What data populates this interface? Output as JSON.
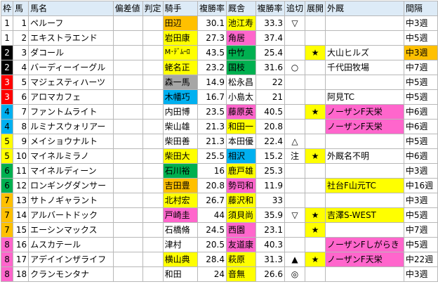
{
  "headers": [
    "枠",
    "馬",
    "馬名",
    "偏差値",
    "判定",
    "騎手",
    "複勝率",
    "厩舎",
    "複勝率",
    "追切",
    "展開",
    "外厩",
    "間隔"
  ],
  "rows": [
    {
      "waku": "1",
      "num": "1",
      "name": "ペルーフ",
      "dev": "",
      "judge": "",
      "jockey": "田辺",
      "j_rate": "30.1",
      "stable": "池江寿",
      "s_rate": "33.3",
      "oikiri": "▽",
      "tenkai": "",
      "gaikyu": "",
      "interval": "中3週"
    },
    {
      "waku": "1",
      "num": "2",
      "name": "エキストラエンド",
      "dev": "",
      "judge": "",
      "jockey": "岩田康",
      "j_rate": "27.3",
      "stable": "角居",
      "s_rate": "37.4",
      "oikiri": "",
      "tenkai": "",
      "gaikyu": "",
      "interval": "中5週"
    },
    {
      "waku": "2",
      "num": "3",
      "name": "ダコール",
      "dev": "",
      "judge": "",
      "jockey": "M･ﾃﾞﾑｰﾛ",
      "j_rate": "43.5",
      "stable": "中竹",
      "s_rate": "25.4",
      "oikiri": "",
      "tenkai": "★",
      "gaikyu": "大山ヒルズ",
      "interval": "中3週"
    },
    {
      "waku": "2",
      "num": "4",
      "name": "バーディーイーグル",
      "dev": "",
      "judge": "",
      "jockey": "蛯名正",
      "j_rate": "23.2",
      "stable": "国枝",
      "s_rate": "31.6",
      "oikiri": "○",
      "tenkai": "",
      "gaikyu": "千代田牧場",
      "interval": "中7週"
    },
    {
      "waku": "3",
      "num": "5",
      "name": "マジェスティハーツ",
      "dev": "",
      "judge": "",
      "jockey": "森一馬",
      "j_rate": "14.9",
      "stable": "松永昌",
      "s_rate": "22",
      "oikiri": "",
      "tenkai": "",
      "gaikyu": "",
      "interval": "中5週"
    },
    {
      "waku": "3",
      "num": "6",
      "name": "アロマカフェ",
      "dev": "",
      "judge": "",
      "jockey": "木幡巧",
      "j_rate": "16.7",
      "stable": "小島太",
      "s_rate": "21",
      "oikiri": "",
      "tenkai": "",
      "gaikyu": "阿見TC",
      "interval": "中5週"
    },
    {
      "waku": "4",
      "num": "7",
      "name": "ファントムライト",
      "dev": "",
      "judge": "",
      "jockey": "内田博",
      "j_rate": "23.5",
      "stable": "藤原英",
      "s_rate": "40.5",
      "oikiri": "",
      "tenkai": "★",
      "gaikyu": "ノーザンF天栄",
      "interval": "中6週"
    },
    {
      "waku": "4",
      "num": "8",
      "name": "ルミナスウォリアー",
      "dev": "",
      "judge": "",
      "jockey": "柴山雄",
      "j_rate": "21.3",
      "stable": "和田一",
      "s_rate": "20.8",
      "oikiri": "",
      "tenkai": "",
      "gaikyu": "ノーザンF天栄",
      "interval": "中6週"
    },
    {
      "waku": "5",
      "num": "9",
      "name": "メイショウナルト",
      "dev": "",
      "judge": "",
      "jockey": "柴田善",
      "j_rate": "21.3",
      "stable": "本田優",
      "s_rate": "22.4",
      "oikiri": "△",
      "tenkai": "",
      "gaikyu": "",
      "interval": "中5週"
    },
    {
      "waku": "5",
      "num": "10",
      "name": "マイネルミラノ",
      "dev": "",
      "judge": "",
      "jockey": "柴田大",
      "j_rate": "25.5",
      "stable": "相沢",
      "s_rate": "15.2",
      "oikiri": "注",
      "tenkai": "★",
      "gaikyu": "外厩名不明",
      "interval": "中6週"
    },
    {
      "waku": "6",
      "num": "11",
      "name": "マイネルディーン",
      "dev": "",
      "judge": "",
      "jockey": "石川裕",
      "j_rate": "16",
      "stable": "鹿戸雄",
      "s_rate": "25.3",
      "oikiri": "",
      "tenkai": "",
      "gaikyu": "",
      "interval": "中3週"
    },
    {
      "waku": "6",
      "num": "12",
      "name": "ロンギングダンサー",
      "dev": "",
      "judge": "",
      "jockey": "吉田豊",
      "j_rate": "20.8",
      "stable": "勢司和",
      "s_rate": "11.9",
      "oikiri": "",
      "tenkai": "",
      "gaikyu": "社台F山元TC",
      "interval": "中16週"
    },
    {
      "waku": "7",
      "num": "13",
      "name": "サトノギャラント",
      "dev": "",
      "judge": "",
      "jockey": "北村宏",
      "j_rate": "26.7",
      "stable": "藤沢和",
      "s_rate": "33",
      "oikiri": "",
      "tenkai": "",
      "gaikyu": "",
      "interval": "中3週"
    },
    {
      "waku": "7",
      "num": "14",
      "name": "アルバートドック",
      "dev": "",
      "judge": "",
      "jockey": "戸崎圭",
      "j_rate": "44",
      "stable": "須貝尚",
      "s_rate": "35.9",
      "oikiri": "▽",
      "tenkai": "★",
      "gaikyu": "吉澤S-WEST",
      "interval": "中5週"
    },
    {
      "waku": "7",
      "num": "15",
      "name": "エーシンマックス",
      "dev": "",
      "judge": "",
      "jockey": "石橋脩",
      "j_rate": "24.5",
      "stable": "西園",
      "s_rate": "23.1",
      "oikiri": "",
      "tenkai": "★",
      "gaikyu": "",
      "interval": "中7週"
    },
    {
      "waku": "8",
      "num": "16",
      "name": "ムスカテール",
      "dev": "",
      "judge": "",
      "jockey": "津村",
      "j_rate": "20.5",
      "stable": "友道康",
      "s_rate": "40.3",
      "oikiri": "",
      "tenkai": "",
      "gaikyu": "ノーザンFしがらき",
      "interval": "中5週"
    },
    {
      "waku": "8",
      "num": "17",
      "name": "アデイインザライフ",
      "dev": "",
      "judge": "",
      "jockey": "横山典",
      "j_rate": "28.4",
      "stable": "萩原",
      "s_rate": "31.3",
      "oikiri": "▲",
      "tenkai": "★",
      "gaikyu": "ノーザンF天栄",
      "interval": "中22週"
    },
    {
      "waku": "8",
      "num": "18",
      "name": "クランモンタナ",
      "dev": "",
      "judge": "",
      "jockey": "和田",
      "j_rate": "24",
      "stable": "音無",
      "s_rate": "26.6",
      "oikiri": "◎",
      "tenkai": "",
      "gaikyu": "",
      "interval": "中3週"
    }
  ],
  "colors": {
    "header_bg": "#ddebf7",
    "waku": {
      "1": "#ffffff",
      "2": "#000000",
      "3": "#ff0000",
      "4": "#00b0f0",
      "5": "#ffff00",
      "6": "#00b050",
      "7": "#ffc000",
      "8": "#ff66cc"
    },
    "waku_text": {
      "1": "#000000",
      "2": "#ffffff",
      "3": "#ffffff",
      "4": "#000000",
      "5": "#000000",
      "6": "#000000",
      "7": "#000000",
      "8": "#000000"
    },
    "orange": "#ffc000",
    "yellow": "#ffff00",
    "pink": "#ff66cc",
    "green": "#00b050",
    "gray": "#a6a6a6",
    "blue": "#00b0f0"
  },
  "highlights": {
    "jockey": {
      "0": "orange",
      "1": "yellow",
      "2": "yellow",
      "3": "yellow",
      "4": "gray",
      "5": "blue",
      "9": "yellow",
      "10": "green",
      "11": "orange",
      "12": "yellow",
      "13": "pink",
      "16": "yellow"
    },
    "stable": {
      "0": "yellow",
      "1": "pink",
      "2": "green",
      "3": "green",
      "6": "pink",
      "7": "yellow",
      "9": "blue",
      "10": "yellow",
      "11": "pink",
      "12": "yellow",
      "13": "yellow",
      "14": "pink",
      "15": "pink",
      "16": "yellow",
      "17": "yellow"
    },
    "tenkai": {
      "2": "yellow",
      "6": "yellow",
      "9": "yellow",
      "13": "yellow",
      "14": "yellow",
      "16": "yellow"
    },
    "gaikyu": {
      "6": "pink",
      "7": "pink",
      "11": "yellow",
      "13": "yellow",
      "15": "pink",
      "16": "pink"
    },
    "interval": {
      "2": "orange"
    }
  }
}
